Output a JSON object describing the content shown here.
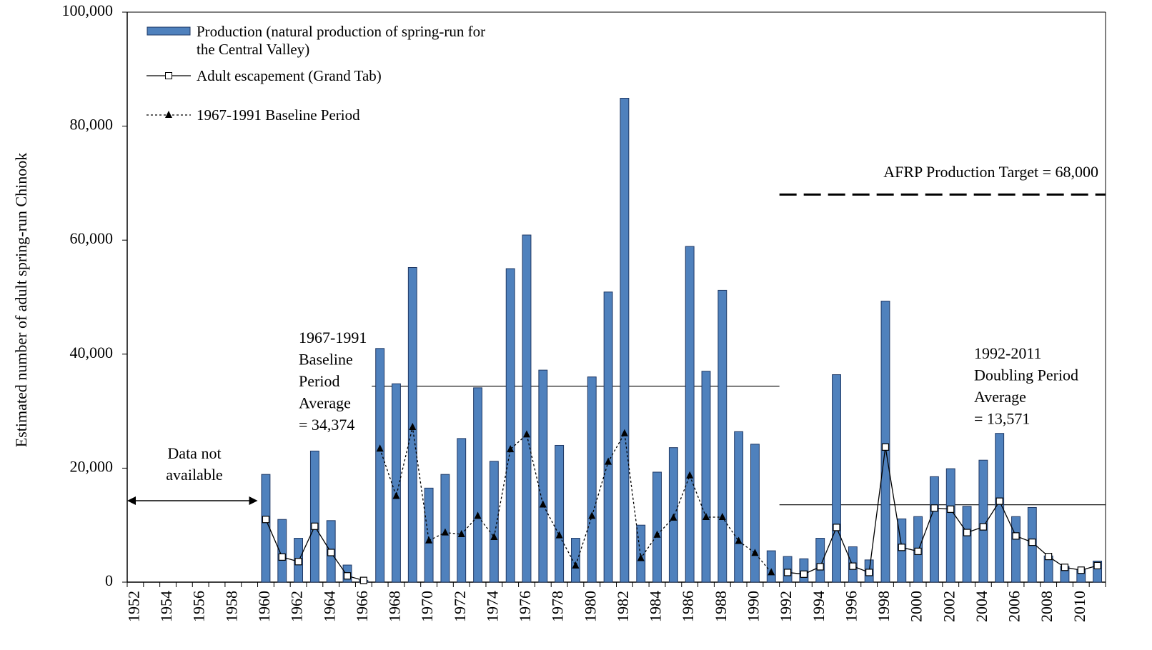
{
  "chart_data": {
    "type": "bar",
    "y_label": "Estimated number of adult spring-run Chinook",
    "categories": [
      "1952",
      null,
      "1954",
      null,
      "1956",
      null,
      "1958",
      null,
      "1960",
      null,
      "1962",
      null,
      "1964",
      null,
      "1966",
      null,
      "1968",
      null,
      "1970",
      null,
      "1972",
      null,
      "1974",
      null,
      "1976",
      null,
      "1978",
      null,
      "1980",
      null,
      "1982",
      null,
      "1984",
      null,
      "1986",
      null,
      "1988",
      null,
      "1990",
      null,
      "1992",
      null,
      "1994",
      null,
      "1996",
      null,
      "1998",
      null,
      "2000",
      null,
      "2002",
      null,
      "2004",
      null,
      "2006",
      null,
      "2008",
      null,
      "2010",
      null
    ],
    "series": [
      {
        "name": "Production (natural production of spring-run for the Central Valley)",
        "type": "bar",
        "color": "#4f81bd",
        "values": [
          null,
          null,
          null,
          null,
          null,
          null,
          null,
          null,
          18900,
          11000,
          7700,
          23000,
          10800,
          3000,
          300,
          41000,
          34800,
          55200,
          16500,
          18900,
          25200,
          34100,
          21200,
          55000,
          60900,
          37200,
          24000,
          7700,
          36000,
          50900,
          84900,
          10000,
          19300,
          23600,
          58900,
          37000,
          51200,
          26400,
          24200,
          5500,
          4500,
          4100,
          7700,
          36400,
          6200,
          3900,
          49300,
          11100,
          11500,
          18500,
          19900,
          13300,
          21400,
          26100,
          11500,
          13100,
          4600,
          2800,
          2200,
          3700
        ]
      },
      {
        "name": "Adult escapement (Grand Tab)",
        "type": "line",
        "marker": "square",
        "color": "#000000",
        "values": [
          null,
          null,
          null,
          null,
          null,
          null,
          null,
          null,
          11000,
          4400,
          3600,
          9800,
          5200,
          1100,
          300,
          null,
          null,
          null,
          null,
          null,
          null,
          null,
          null,
          null,
          null,
          null,
          null,
          null,
          null,
          null,
          null,
          null,
          null,
          null,
          null,
          null,
          null,
          null,
          null,
          null,
          1700,
          1400,
          2700,
          9600,
          2800,
          1700,
          23700,
          6100,
          5400,
          13000,
          12800,
          8700,
          9700,
          14200,
          8100,
          7000,
          4500,
          2600,
          2100,
          2900
        ]
      },
      {
        "name": "1967-1991 Baseline Period",
        "type": "line",
        "marker": "triangle",
        "dashed": true,
        "color": "#000000",
        "values": [
          null,
          null,
          null,
          null,
          null,
          null,
          null,
          null,
          null,
          null,
          null,
          null,
          null,
          null,
          null,
          23400,
          15100,
          27200,
          7300,
          8700,
          8400,
          11600,
          7900,
          23300,
          25900,
          13600,
          8200,
          2900,
          11600,
          21100,
          26100,
          4200,
          8300,
          11300,
          18700,
          11400,
          11400,
          7200,
          5100,
          1700,
          null,
          null,
          null,
          null,
          null,
          null,
          null,
          null,
          null,
          null,
          null,
          null,
          null,
          null,
          null,
          null,
          null,
          null,
          null,
          null
        ]
      }
    ],
    "reference_lines": [
      {
        "value": 34374,
        "x_range": [
          1967,
          1991
        ],
        "label": [
          "1967-1991",
          "Baseline",
          "Period",
          "Average",
          "= 34,374"
        ]
      },
      {
        "value": 13571,
        "x_range": [
          1992,
          2011
        ],
        "label": [
          "1992-2011",
          "Doubling Period",
          "Average",
          "= 13,571"
        ]
      },
      {
        "value": 68000,
        "x_range": [
          1992,
          2011
        ],
        "dashed": true,
        "label": [
          "AFRP Production Target = 68,000"
        ]
      }
    ],
    "no_data": {
      "x_range": [
        1952,
        1959
      ],
      "label": [
        "Data not",
        "available"
      ]
    },
    "ylim": [
      0,
      100000
    ],
    "yticks": [
      0,
      {
        "value": 20000,
        "label": "20,000"
      },
      {
        "value": 40000,
        "label": "40,000"
      },
      {
        "value": 60000,
        "label": "60,000"
      },
      {
        "value": 80000,
        "label": "80,000"
      },
      {
        "value": 100000,
        "label": "100,000"
      }
    ],
    "legend": "top-left"
  }
}
